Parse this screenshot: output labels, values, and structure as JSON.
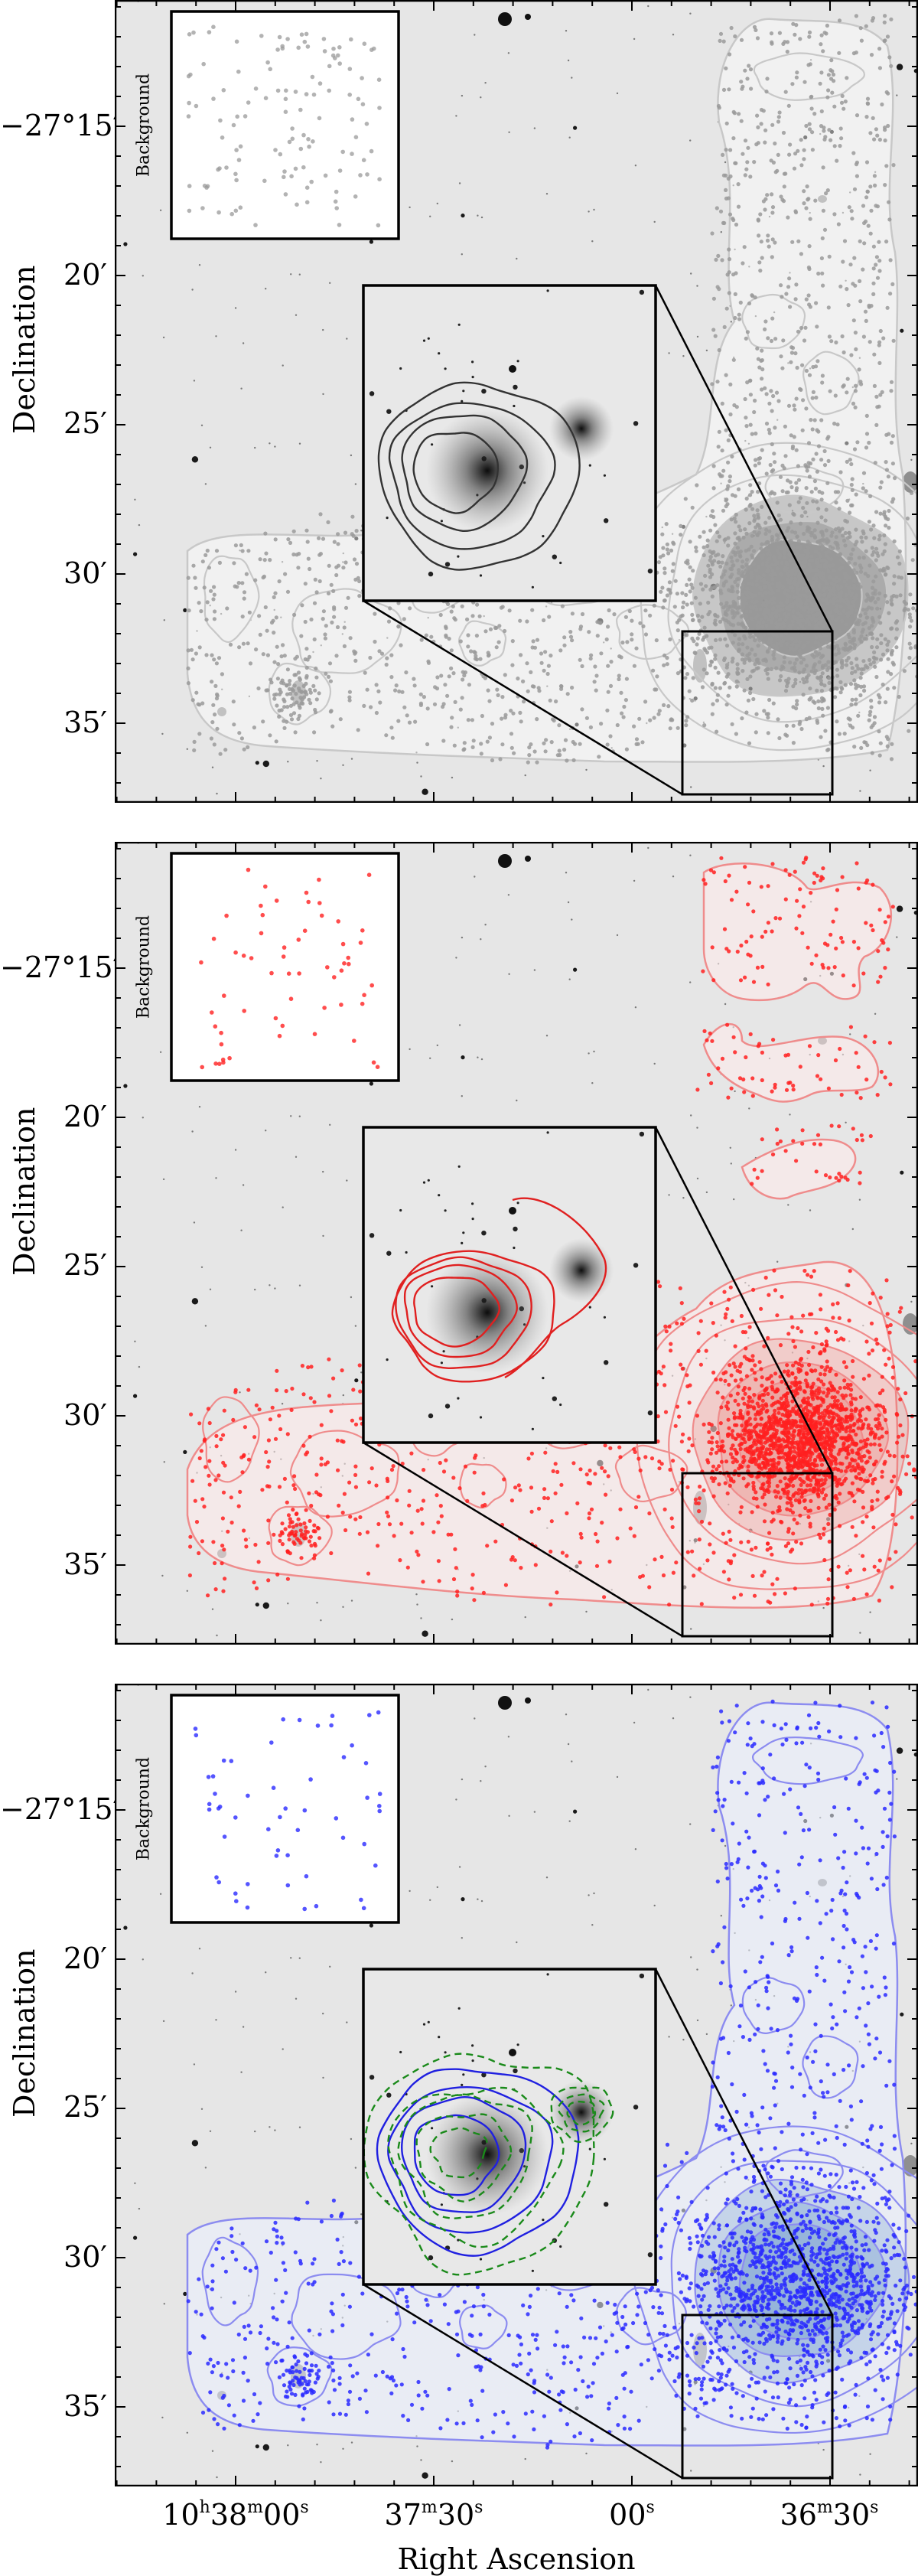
{
  "figure": {
    "y_axis_title": "Declination",
    "x_axis_title": "Right Ascension",
    "inset_label": "Background",
    "y_tick_labels": [
      "−27°15′",
      "20′",
      "25′",
      "30′",
      "35′"
    ],
    "x_tick_labels": [
      {
        "main": "10",
        "sup1": "h",
        "mid": "38",
        "sup2": "m",
        "end": "00",
        "sup3": "s"
      },
      {
        "main": "37",
        "sup1": "m",
        "mid": "30",
        "sup2": "s"
      },
      {
        "main": "00",
        "sup1": "s"
      },
      {
        "main": "36",
        "sup1": "m",
        "mid": "30",
        "sup2": "s"
      }
    ],
    "colors": {
      "panel_top_points": "#9a9a9a",
      "panel_top_contours": "#c8c8c8",
      "panel_top_inset_contours": "#333333",
      "panel_mid_points": "#ff2020",
      "panel_mid_contours": "#ef8c8c",
      "panel_mid_inset_contours": "#e02020",
      "panel_bot_points": "#2a2aff",
      "panel_bot_contours": "#8c8cf0",
      "panel_bot_inset_contours": "#2020e0",
      "panel_bot_inset_dashed": "#1a8a1a",
      "sky_background": "#e6e6e6"
    }
  },
  "panels": [
    {
      "name": "top",
      "tint": "gray",
      "has_dashed_overlay": false
    },
    {
      "name": "middle",
      "tint": "red",
      "has_dashed_overlay": false
    },
    {
      "name": "bottom",
      "tint": "blue",
      "has_dashed_overlay": true
    }
  ],
  "chart_data": {
    "type": "scatter",
    "title": "",
    "xlabel": "Right Ascension",
    "ylabel": "Declination",
    "x_ticks": [
      "10h38m00s",
      "37m30s",
      "00s",
      "36m30s"
    ],
    "y_ticks": [
      "-27°15'",
      "20'",
      "25'",
      "30'",
      "35'"
    ],
    "x_range_approx": [
      "10h38m12s",
      "10h36m20s"
    ],
    "y_range_approx": [
      "-27°11'",
      "-27°38'"
    ],
    "grid": false,
    "panels": [
      {
        "series": "gray point sources with density contours",
        "inset": "zoom of central galaxy pair with dark contours",
        "background_inset": "Background (sparse gray points)"
      },
      {
        "series": "red point sources with density contours",
        "inset": "zoom of central galaxy pair with red contours",
        "background_inset": "Background (sparse red points)"
      },
      {
        "series": "blue point sources with density contours",
        "inset": "zoom of central galaxy pair with blue solid and green dashed contours",
        "background_inset": "Background (sparse blue points)"
      }
    ],
    "annotations": [
      "Background"
    ]
  }
}
